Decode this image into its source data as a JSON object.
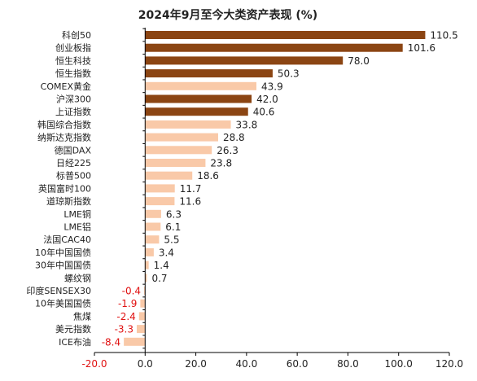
{
  "chart_data": {
    "type": "bar",
    "orientation": "horizontal",
    "title": "2024年9月至今大类资产表现 (%)",
    "xlabel": "",
    "ylabel": "",
    "xlim": [
      -20,
      120
    ],
    "x_ticks": [
      "-20.0",
      "0.0",
      "20.0",
      "40.0",
      "60.0",
      "80.0",
      "100.0",
      "120.0"
    ],
    "grid": false,
    "legend": "none",
    "categories": [
      "科创50",
      "创业板指",
      "恒生科技",
      "恒生指数",
      "COMEX黄金",
      "沪深300",
      "上证指数",
      "韩国综合指数",
      "纳斯达克指数",
      "德国DAX",
      "日经225",
      "标普500",
      "英国富时100",
      "道琼斯指数",
      "LME铜",
      "LME铝",
      "法国CAC40",
      "10年中国国债",
      "30年中国国债",
      "螺纹钢",
      "印度SENSEX30",
      "10年美国国债",
      "焦煤",
      "美元指数",
      "ICE布油"
    ],
    "values": [
      110.5,
      101.6,
      78.0,
      50.3,
      43.9,
      42.0,
      40.6,
      33.8,
      28.8,
      26.3,
      23.8,
      18.6,
      11.7,
      11.6,
      6.3,
      6.1,
      5.5,
      3.4,
      1.4,
      0.7,
      -0.4,
      -1.9,
      -2.4,
      -3.3,
      -8.4
    ],
    "value_labels": [
      "110.5",
      "101.6",
      "78.0",
      "50.3",
      "43.9",
      "42.0",
      "40.6",
      "33.8",
      "28.8",
      "26.3",
      "23.8",
      "18.6",
      "11.7",
      "11.6",
      "6.3",
      "6.1",
      "5.5",
      "3.4",
      "1.4",
      "0.7",
      "-0.4",
      "-1.9",
      "-2.4",
      "-3.3",
      "-8.4"
    ],
    "highlighted": [
      "科创50",
      "创业板指",
      "恒生科技",
      "恒生指数",
      "沪深300",
      "上证指数"
    ]
  },
  "colors": {
    "highlight_bar": "#8B4513",
    "normal_bar": "#F9C9A8",
    "negative_label": "#E01010",
    "positive_label": "#222222",
    "axis": "#000000",
    "tick_negative": "#E01010",
    "tick_positive": "#222222"
  }
}
